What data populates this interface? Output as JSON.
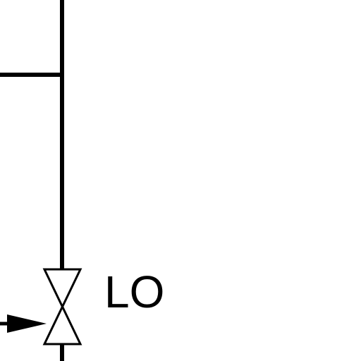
{
  "diagram": {
    "valve_label": "LO",
    "colors": {
      "line": "#000000",
      "background": "#ffffff"
    },
    "symbols": [
      "gate-valve-icon",
      "flow-arrow-icon"
    ]
  }
}
